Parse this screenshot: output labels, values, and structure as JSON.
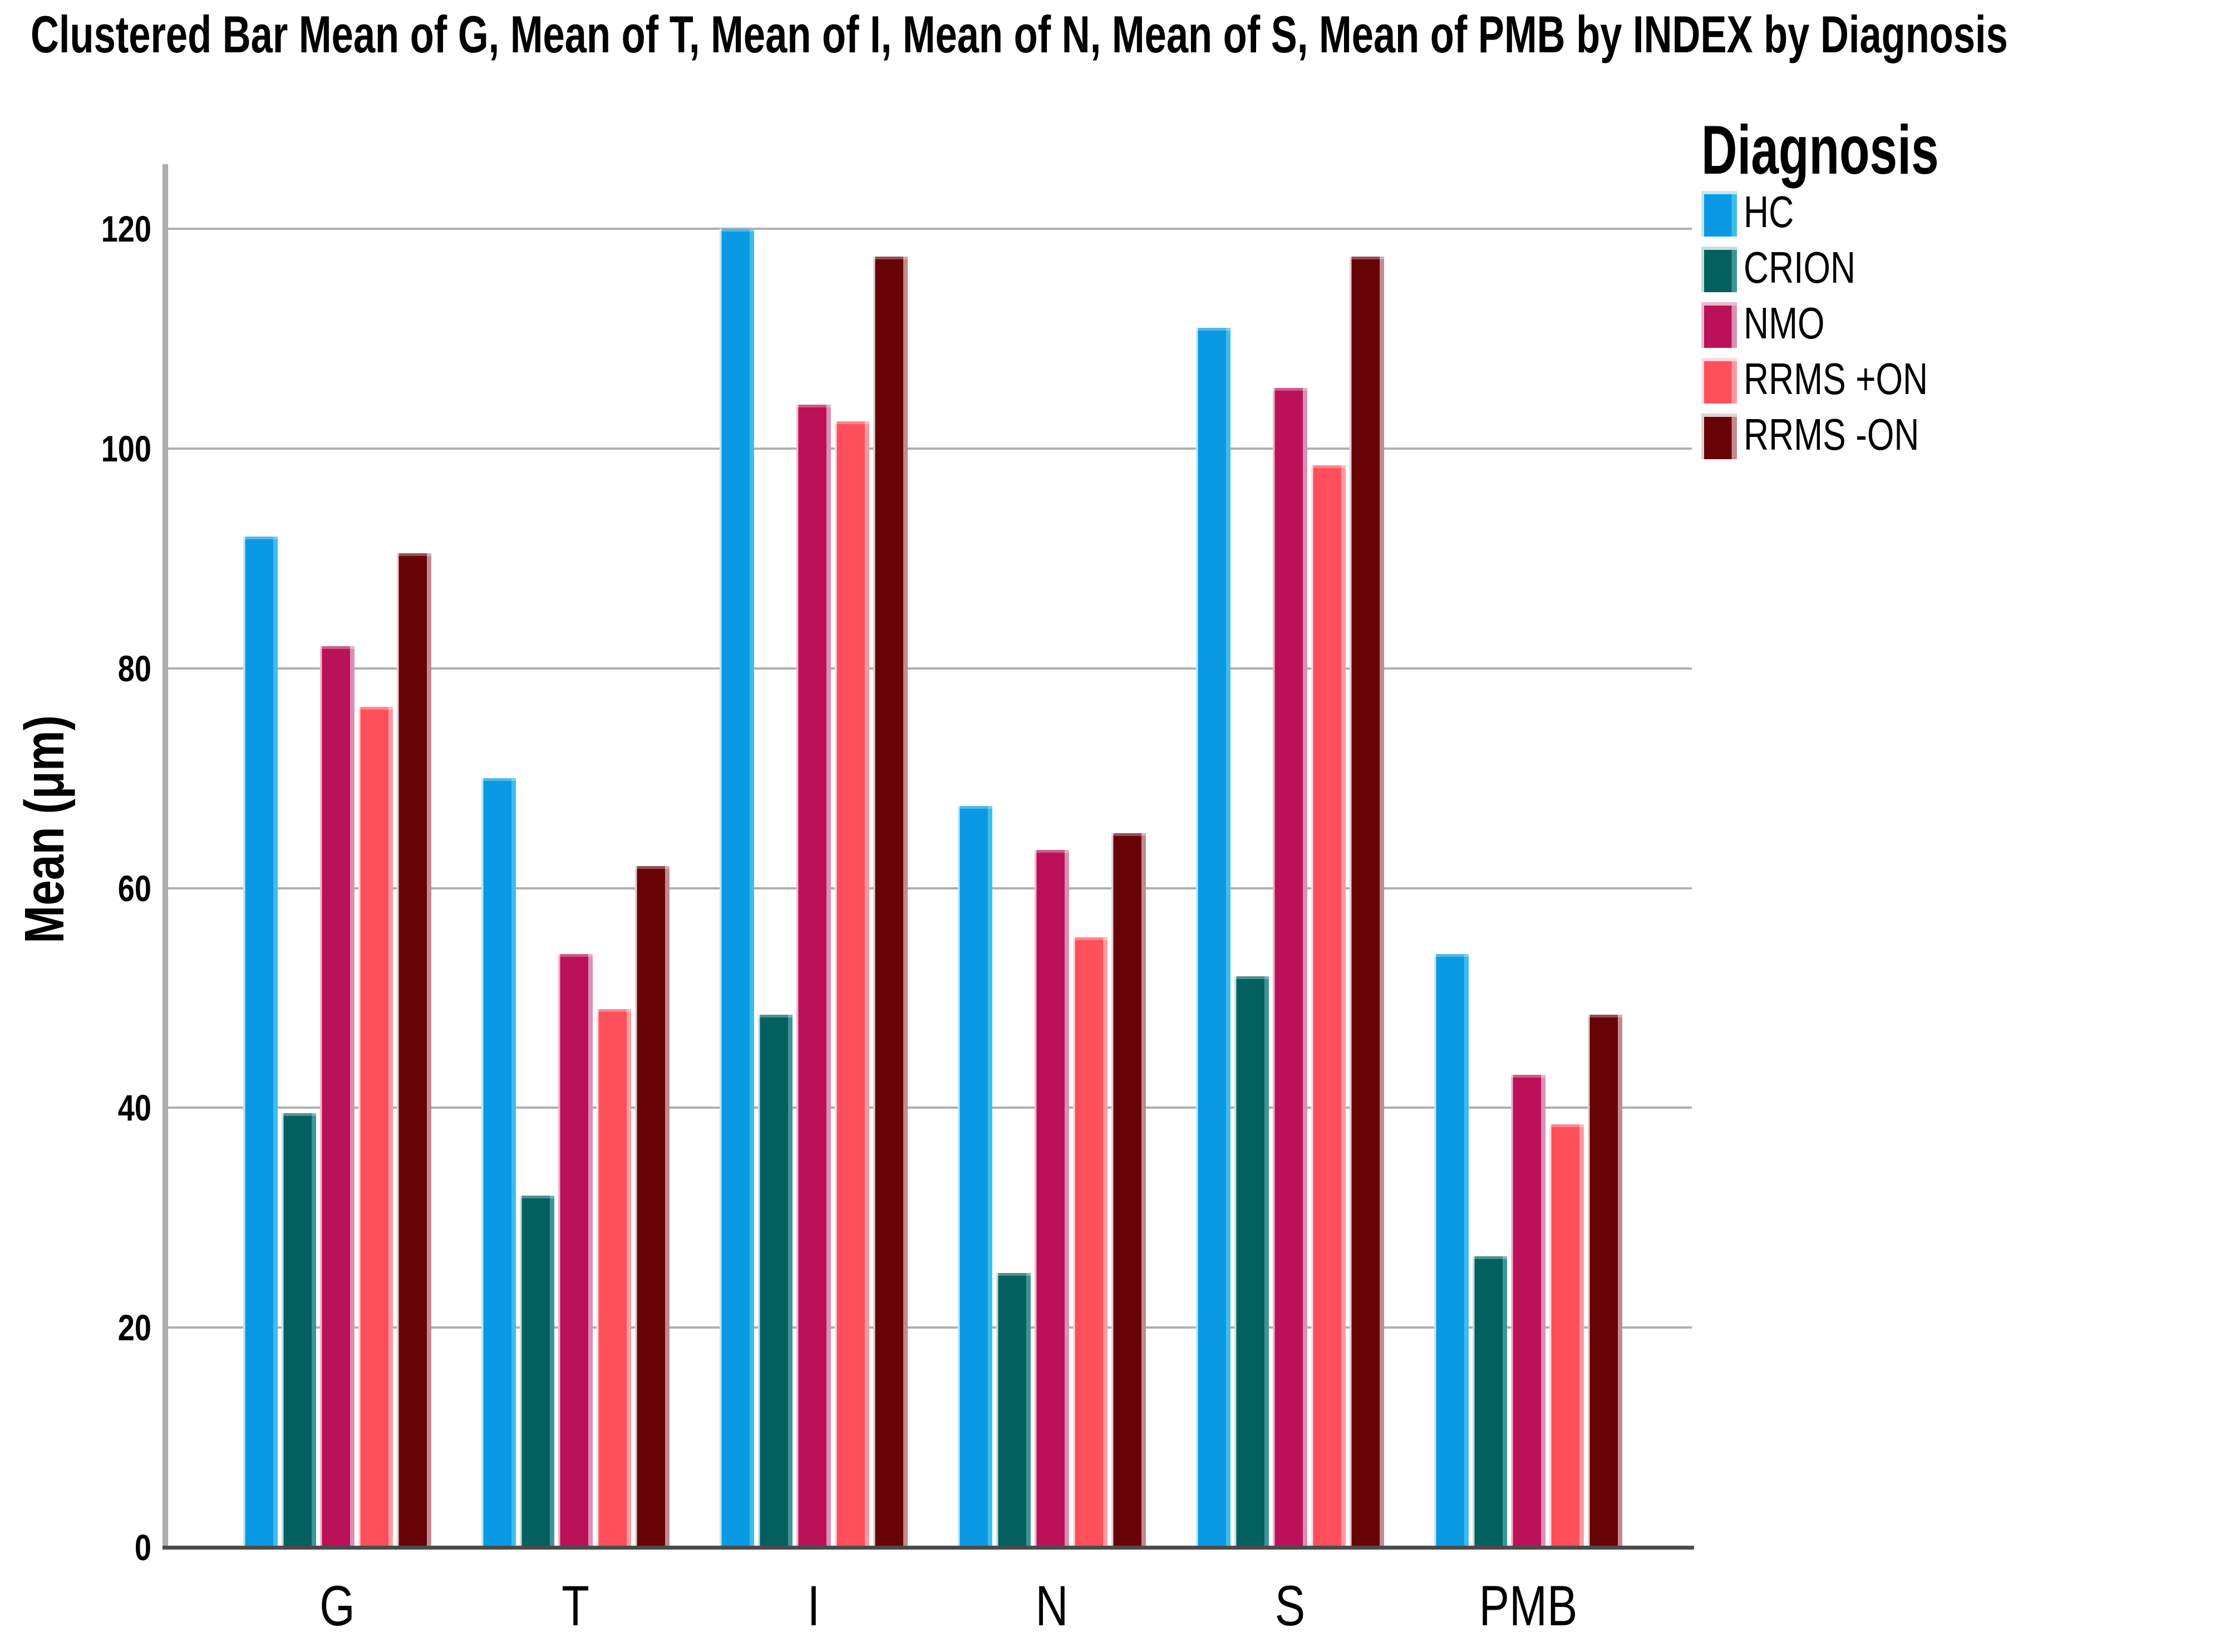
{
  "title": "Clustered Bar Mean of G, Mean of T, Mean of I, Mean of N, Mean of S, Mean of PMB by INDEX by Diagnosis",
  "y_axis": {
    "label": "Mean (μm)",
    "ticks": [
      0,
      20,
      40,
      60,
      80,
      100,
      120
    ]
  },
  "x_axis": {
    "categories": [
      "G",
      "T",
      "I",
      "N",
      "S",
      "PMB"
    ]
  },
  "legend": {
    "title": "Diagnosis",
    "entries": [
      "HC",
      "CRION",
      "NMO",
      "RRMS +ON",
      "RRMS -ON"
    ]
  },
  "chart_data": {
    "type": "bar",
    "title": "Clustered Bar Mean of G, Mean of T, Mean of I, Mean of N, Mean of S, Mean of PMB by INDEX by Diagnosis",
    "categories": [
      "G",
      "T",
      "I",
      "N",
      "S",
      "PMB"
    ],
    "series": [
      {
        "name": "HC",
        "color": "#0a99e3",
        "edge_pale": "#bfe9f9",
        "edge_light": "#3fbcee",
        "values": [
          92,
          70,
          120,
          67.5,
          111,
          54
        ]
      },
      {
        "name": "CRION",
        "color": "#03605f",
        "edge_pale": "#c3e0e1",
        "edge_light": "#3e9596",
        "values": [
          39.5,
          32,
          48.5,
          25,
          52,
          26.5
        ]
      },
      {
        "name": "NMO",
        "color": "#ba1158",
        "edge_pale": "#f1b6cb",
        "edge_light": "#da8fb4",
        "values": [
          82,
          54,
          104,
          63.5,
          105.5,
          43
        ]
      },
      {
        "name": "RRMS +ON",
        "color": "#fe4f5a",
        "edge_pale": "#ffd9de",
        "edge_light": "#ff9aa1",
        "values": [
          76.5,
          49,
          102.5,
          55.5,
          98.5,
          38.5
        ]
      },
      {
        "name": "RRMS -ON",
        "color": "#670307",
        "edge_pale": "#e5cfd1",
        "edge_light": "#c18a8e",
        "values": [
          90.5,
          62,
          117.5,
          65,
          117.5,
          48.5
        ]
      }
    ],
    "xlabel": "",
    "ylabel": "Mean (μm)",
    "yticks": [
      0,
      20,
      40,
      60,
      80,
      100,
      120
    ],
    "ylim": [
      0,
      126
    ],
    "grid": true,
    "legend_title": "Diagnosis",
    "legend_position": "right",
    "gridline_color": "#afafaf",
    "axis_color": "#4b4b4b"
  }
}
